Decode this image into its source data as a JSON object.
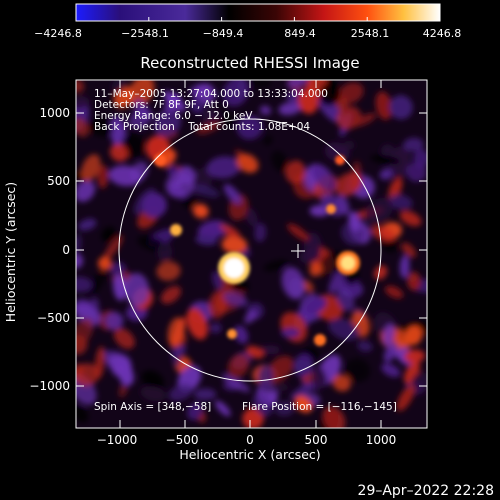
{
  "colorbar": {
    "tick_labels": [
      "−4246.8",
      "−2548.1",
      "−849.4",
      "849.4",
      "2548.1",
      "4246.8"
    ],
    "stops": [
      "#1c1cff",
      "#2a0f7a",
      "#4a2a9a",
      "#000000",
      "#3a0505",
      "#c41515",
      "#ff5010",
      "#ffc040",
      "#ffffff"
    ]
  },
  "plot": {
    "title": "Reconstructed RHESSI Image",
    "info_lines": [
      "11–May–2005 13:27:04.000 to 13:33:04.000",
      "Detectors: 7F 8F 9F, Att 0",
      "Energy Range: 6.0 − 12.0 keV",
      "Back Projection    Total counts: 1.08E+04"
    ],
    "spin_axis": "Spin Axis = [348,−58]",
    "flare_position": "Flare Position = [−116,−145]",
    "xlabel": "Heliocentric X (arcsec)",
    "ylabel": "Heliocentric Y (arcsec)",
    "x_ticks": [
      "−1000",
      "−500",
      "0",
      "500",
      "1000"
    ],
    "y_ticks": [
      "1000",
      "500",
      "0",
      "−500",
      "−1000"
    ]
  },
  "footer": {
    "timestamp": "29–Apr–2022 22:28"
  }
}
